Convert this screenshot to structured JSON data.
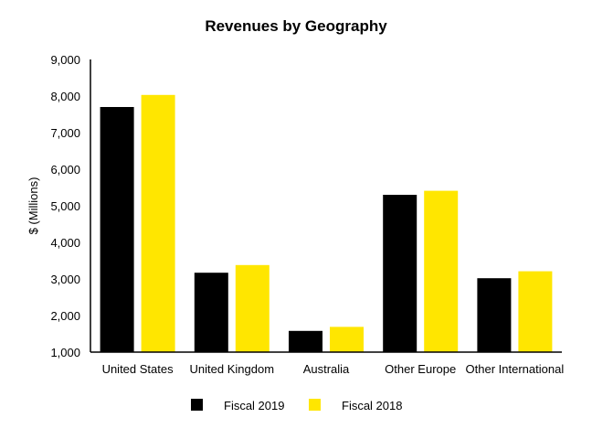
{
  "chart_data": {
    "type": "bar",
    "title": "Revenues by Geography",
    "xlabel": "",
    "ylabel": "$ (Millions)",
    "ylim": [
      1000,
      9000
    ],
    "yticks": [
      "1,000",
      "2,000",
      "3,000",
      "4,000",
      "5,000",
      "6,000",
      "7,000",
      "8,000",
      "9,000"
    ],
    "ytick_values": [
      1000,
      2000,
      3000,
      4000,
      5000,
      6000,
      7000,
      8000,
      9000
    ],
    "grid": false,
    "legend_position": "bottom",
    "categories": [
      "United States",
      "United Kingdom",
      "Australia",
      "Other Europe",
      "Other International"
    ],
    "series": [
      {
        "name": "Fiscal 2019",
        "color": "#000000",
        "values": [
          7700,
          3170,
          1580,
          5300,
          3020
        ]
      },
      {
        "name": "Fiscal 2018",
        "color": "#FFE600",
        "values": [
          8030,
          3380,
          1690,
          5410,
          3210
        ]
      }
    ]
  }
}
